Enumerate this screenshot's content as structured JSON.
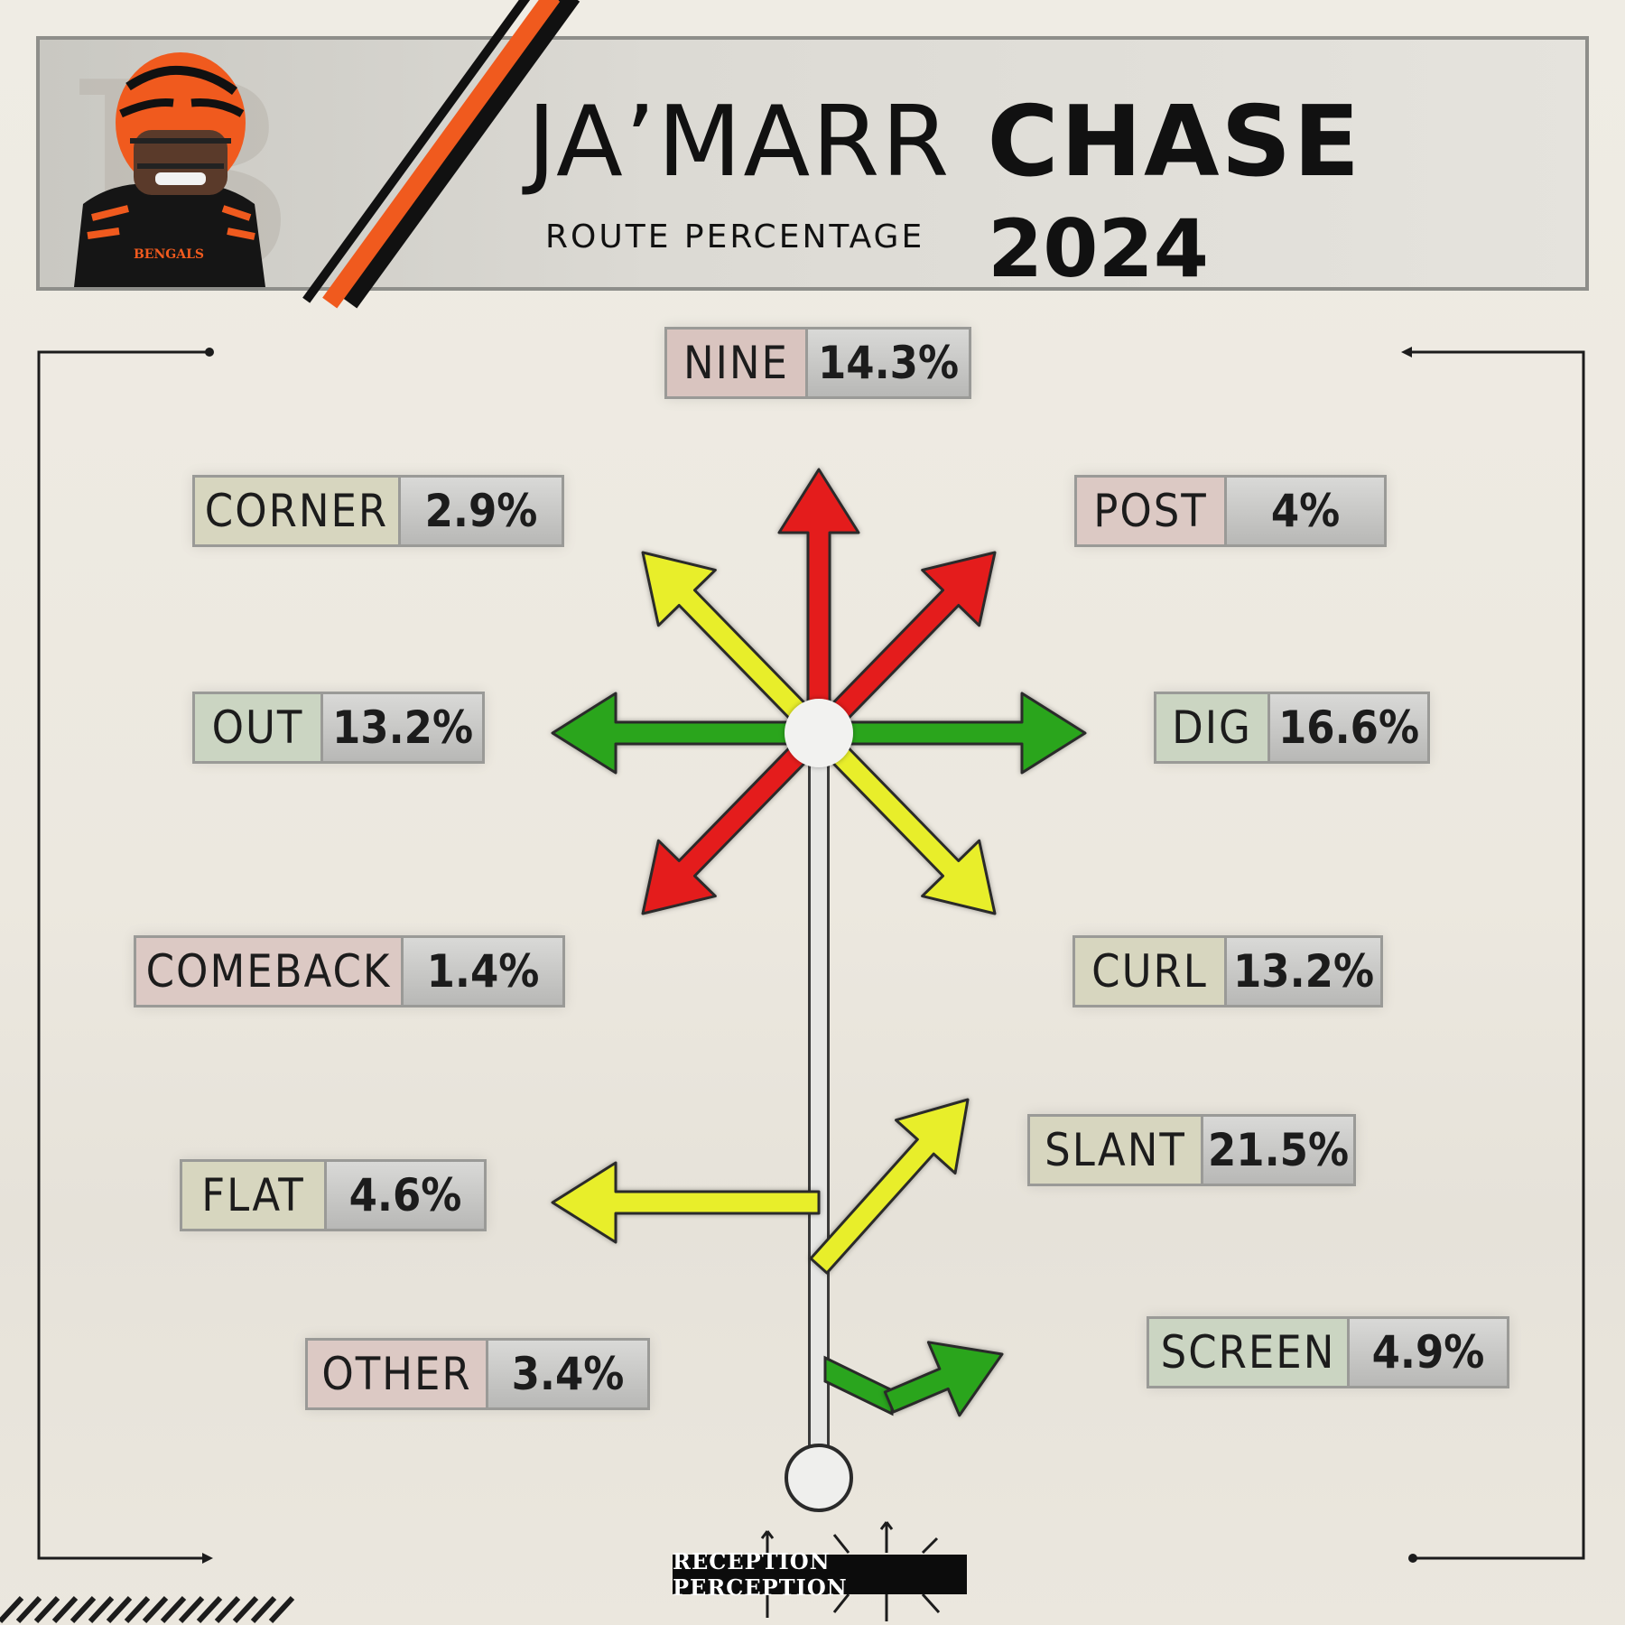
{
  "header": {
    "first_name": "JA’MARR",
    "last_name": "CHASE",
    "subtitle": "ROUTE PERCENTAGE",
    "year": "2024",
    "team_wordmark": "BENGALS"
  },
  "colors": {
    "red": "#e41e1e",
    "yellow": "#e8ee2a",
    "green": "#2aa51e",
    "stem": "#e6e6e4",
    "brand_orange": "#f05a1e"
  },
  "routes": [
    {
      "key": "nine",
      "name": "NINE",
      "value": "14.3%",
      "color": "red"
    },
    {
      "key": "corner",
      "name": "CORNER",
      "value": "2.9%",
      "color": "yellow"
    },
    {
      "key": "post",
      "name": "POST",
      "value": "4%",
      "color": "red"
    },
    {
      "key": "out",
      "name": "OUT",
      "value": "13.2%",
      "color": "green"
    },
    {
      "key": "dig",
      "name": "DIG",
      "value": "16.6%",
      "color": "green"
    },
    {
      "key": "comeback",
      "name": "COMEBACK",
      "value": "1.4%",
      "color": "red"
    },
    {
      "key": "curl",
      "name": "CURL",
      "value": "13.2%",
      "color": "yellow"
    },
    {
      "key": "flat",
      "name": "FLAT",
      "value": "4.6%",
      "color": "yellow"
    },
    {
      "key": "slant",
      "name": "SLANT",
      "value": "21.5%",
      "color": "yellow"
    },
    {
      "key": "other",
      "name": "OTHER",
      "value": "3.4%",
      "color": "red"
    },
    {
      "key": "screen",
      "name": "SCREEN",
      "value": "4.9%",
      "color": "green"
    }
  ],
  "footer": {
    "brand": "RECEPTION PERCEPTION"
  }
}
